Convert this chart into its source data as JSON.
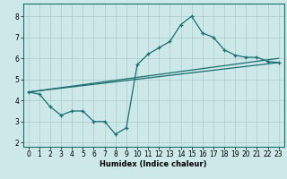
{
  "xlabel": "Humidex (Indice chaleur)",
  "bg_color": "#cce8e8",
  "grid_color": "#aacccc",
  "line_color": "#1a6e6e",
  "xlim": [
    -0.5,
    23.5
  ],
  "ylim": [
    1.8,
    8.6
  ],
  "yticks": [
    2,
    3,
    4,
    5,
    6,
    7,
    8
  ],
  "xticks": [
    0,
    1,
    2,
    3,
    4,
    5,
    6,
    7,
    8,
    9,
    10,
    11,
    12,
    13,
    14,
    15,
    16,
    17,
    18,
    19,
    20,
    21,
    22,
    23
  ],
  "line1_x": [
    0,
    1,
    2,
    3,
    4,
    5,
    6,
    7,
    8,
    9,
    10,
    11,
    12,
    13,
    14,
    15,
    16,
    17,
    18,
    19,
    20,
    21,
    22,
    23
  ],
  "line1_y": [
    4.4,
    4.3,
    3.7,
    3.3,
    3.5,
    3.5,
    3.0,
    3.0,
    2.4,
    2.7,
    5.7,
    6.2,
    6.5,
    6.8,
    7.6,
    8.0,
    7.2,
    7.0,
    6.4,
    6.15,
    6.05,
    6.05,
    5.85,
    5.8
  ],
  "line2_x": [
    0,
    23
  ],
  "line2_y": [
    4.4,
    6.0
  ],
  "line3_x": [
    0,
    23
  ],
  "line3_y": [
    4.4,
    5.8
  ],
  "lw": 0.9
}
